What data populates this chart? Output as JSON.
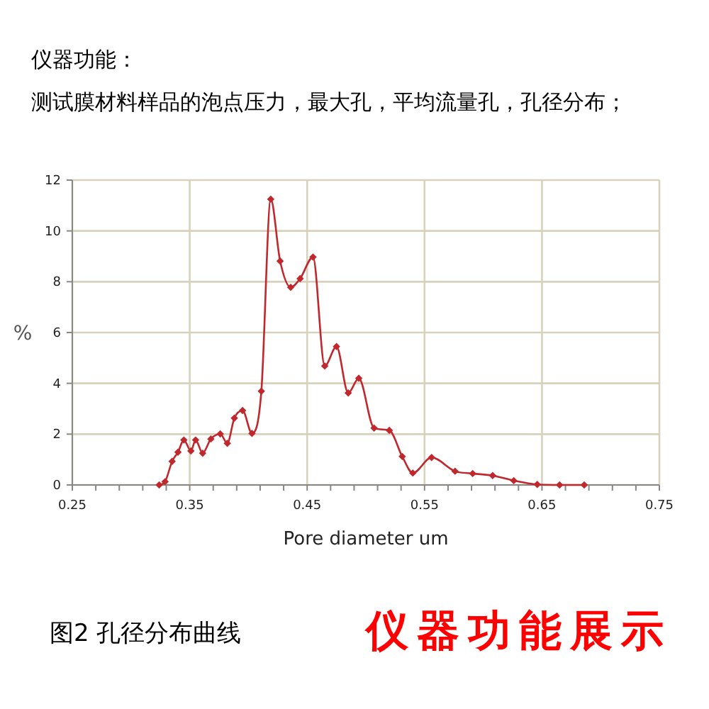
{
  "chart_data": {
    "type": "line",
    "title": "仪器功能：",
    "subtitle": "测试膜材料样品的泡点压力，最大孔，平均流量孔，孔径分布；",
    "xlabel": "Pore diameter um",
    "ylabel": "%",
    "annotations": [
      "图2 孔径分布曲线",
      "仪器功能展示"
    ],
    "xlim": [
      0.25,
      0.75
    ],
    "xticks": [
      0.25,
      {
        "value": 0.27,
        "label": null
      },
      {
        "value": 0.29,
        "label": null
      },
      {
        "value": 0.31,
        "label": null
      },
      {
        "value": 0.33,
        "label": null
      },
      0.35,
      {
        "value": 0.37,
        "label": null
      },
      {
        "value": 0.39,
        "label": null
      },
      {
        "value": 0.41,
        "label": null
      },
      {
        "value": 0.43,
        "label": null
      },
      0.45,
      {
        "value": 0.47,
        "label": null
      },
      {
        "value": 0.49,
        "label": null
      },
      {
        "value": 0.51,
        "label": null
      },
      {
        "value": 0.53,
        "label": null
      },
      0.55,
      {
        "value": 0.57,
        "label": null
      },
      {
        "value": 0.59,
        "label": null
      },
      {
        "value": 0.61,
        "label": null
      },
      {
        "value": 0.63,
        "label": null
      },
      0.65,
      {
        "value": 0.67,
        "label": null
      },
      {
        "value": 0.69,
        "label": null
      },
      {
        "value": 0.71,
        "label": null
      },
      {
        "value": 0.73,
        "label": null
      },
      0.75
    ],
    "ylim": [
      0,
      12
    ],
    "yticks": [
      0,
      2,
      4,
      6,
      8,
      10,
      12
    ],
    "grid": true,
    "marker": "diamond",
    "line_style": "solid",
    "series": [
      {
        "color": "#c0282d",
        "x": [
          0.324,
          0.329,
          0.335,
          0.34,
          0.345,
          0.351,
          0.355,
          0.361,
          0.368,
          0.376,
          0.382,
          0.388,
          0.395,
          0.403,
          0.411,
          0.419,
          0.427,
          0.436,
          0.444,
          0.455,
          0.465,
          0.475,
          0.485,
          0.494,
          0.507,
          0.52,
          0.531,
          0.54,
          0.556,
          0.576,
          0.591,
          0.608,
          0.626,
          0.646,
          0.665,
          0.686
        ],
        "values": [
          0,
          0.13,
          0.93,
          1.29,
          1.77,
          1.34,
          1.77,
          1.25,
          1.81,
          2.01,
          1.64,
          2.63,
          2.93,
          2.03,
          3.69,
          11.25,
          8.81,
          7.78,
          8.12,
          8.97,
          4.68,
          5.45,
          3.62,
          4.2,
          2.24,
          2.15,
          1.12,
          0.47,
          1.08,
          0.54,
          0.45,
          0.37,
          0.17,
          0.02,
          0,
          0
        ]
      }
    ]
  }
}
